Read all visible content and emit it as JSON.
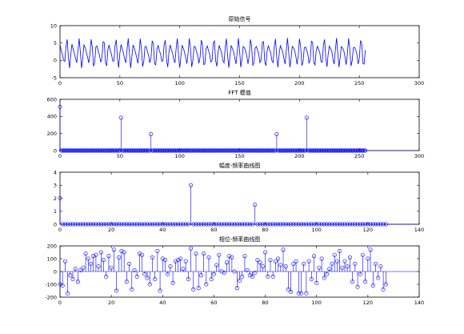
{
  "figure": {
    "background": "#ffffff",
    "axis_color": "#000000",
    "series_color": "#0000ff"
  },
  "chart_data": [
    {
      "type": "line",
      "title": "原始信号",
      "xlabel": "",
      "ylabel": "",
      "xlim": [
        0,
        300
      ],
      "ylim": [
        -5,
        10
      ],
      "xticks": [
        0,
        50,
        100,
        150,
        200,
        250,
        300
      ],
      "yticks": [
        -5,
        0,
        5,
        10
      ],
      "grid": false,
      "signal": {
        "n": 256,
        "offset": 2,
        "components": [
          {
            "amplitude": 3,
            "period": 5.12,
            "phase_deg": -30
          },
          {
            "amplitude": 1.5,
            "period": 3.41,
            "phase_deg": 90
          }
        ]
      }
    },
    {
      "type": "stem",
      "title": "FFT 模值",
      "xlabel": "",
      "ylabel": "",
      "xlim": [
        0,
        300
      ],
      "ylim": [
        0,
        600
      ],
      "xticks": [
        0,
        50,
        100,
        150,
        200,
        250,
        300
      ],
      "yticks": [
        0,
        200,
        400,
        600
      ],
      "grid": false,
      "n": 256,
      "peaks": [
        {
          "x": 0,
          "y": 512
        },
        {
          "x": 51,
          "y": 384
        },
        {
          "x": 76,
          "y": 192
        },
        {
          "x": 181,
          "y": 192
        },
        {
          "x": 206,
          "y": 384
        }
      ]
    },
    {
      "type": "stem",
      "title": "幅度-频率曲线图",
      "xlabel": "",
      "ylabel": "",
      "xlim": [
        0,
        140
      ],
      "ylim": [
        0,
        4
      ],
      "xticks": [
        0,
        20,
        40,
        60,
        80,
        100,
        120,
        140
      ],
      "yticks": [
        0,
        1,
        2,
        3,
        4
      ],
      "grid": false,
      "n": 128,
      "peaks": [
        {
          "x": 0,
          "y": 2
        },
        {
          "x": 51,
          "y": 3
        },
        {
          "x": 76,
          "y": 1.5
        }
      ]
    },
    {
      "type": "stem",
      "title": "相位-频率曲线图",
      "xlabel": "",
      "ylabel": "",
      "xlim": [
        0,
        140
      ],
      "ylim": [
        -200,
        200
      ],
      "xticks": [
        0,
        20,
        40,
        60,
        80,
        100,
        120,
        140
      ],
      "yticks": [
        -200,
        -100,
        0,
        100,
        200
      ],
      "grid": false,
      "values": [
        -100,
        -110,
        80,
        -170,
        -30,
        -60,
        20,
        -80,
        10,
        30,
        140,
        100,
        60,
        120,
        130,
        40,
        150,
        90,
        -40,
        120,
        30,
        170,
        -150,
        110,
        160,
        150,
        -80,
        60,
        -140,
        10,
        -40,
        140,
        130,
        -20,
        -50,
        -100,
        110,
        -60,
        160,
        -150,
        100,
        90,
        -20,
        40,
        -90,
        80,
        90,
        100,
        20,
        80,
        -60,
        180,
        -140,
        140,
        -130,
        -30,
        140,
        -100,
        110,
        -60,
        -20,
        50,
        130,
        0,
        -10,
        70,
        120,
        110,
        0,
        -130,
        -70,
        -40,
        120,
        10,
        -30,
        -40,
        -10,
        90,
        70,
        40,
        150,
        -40,
        90,
        -40,
        80,
        100,
        50,
        170,
        40,
        -140,
        -160,
        60,
        80,
        -170,
        -170,
        60,
        -170,
        80,
        -60,
        120,
        -90,
        30,
        100,
        -50,
        -20,
        20,
        60,
        130,
        80,
        160,
        30,
        80,
        40,
        110,
        -80,
        60,
        -120,
        -20,
        130,
        -80,
        100,
        170,
        -110,
        60,
        -50,
        40,
        -140,
        -100
      ]
    }
  ]
}
